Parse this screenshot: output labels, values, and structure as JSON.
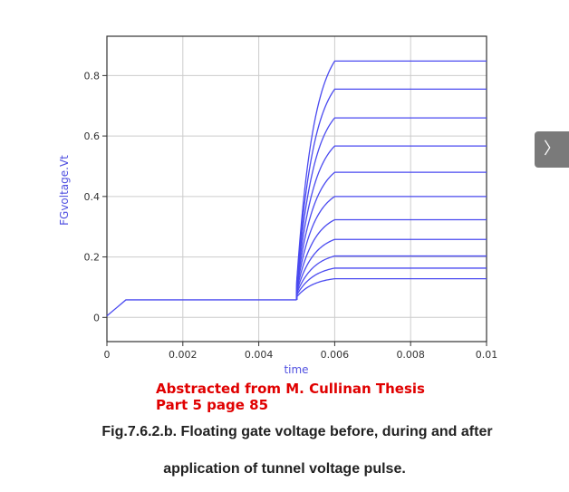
{
  "chart_data": {
    "type": "line",
    "ylabel": "FGvoltage.Vt",
    "xlabel": "time",
    "xlim": [
      0,
      0.01
    ],
    "ylim": [
      -0.08,
      0.93
    ],
    "xticks": [
      "0",
      "0.002",
      "0.004",
      "0.006",
      "0.008",
      "0.01"
    ],
    "xtick_values": [
      0,
      0.002,
      0.004,
      0.006,
      0.008,
      0.01
    ],
    "yticks": [
      "0",
      "0.2",
      "0.4",
      "0.6",
      "0.8"
    ],
    "ytick_values": [
      0,
      0.2,
      0.4,
      0.6,
      0.8
    ],
    "grid": true,
    "line_color": "#4a4af0",
    "ramp": {
      "x": [
        0,
        0.0005
      ],
      "y": [
        0.005,
        0.058
      ]
    },
    "plateau_y": 0.058,
    "pulse_start": 0.005,
    "pulse_end": 0.006,
    "pulse_start_y": [
      0.068,
      0.074,
      0.08,
      0.085,
      0.09,
      0.095,
      0.1,
      0.105,
      0.11,
      0.115,
      0.12
    ],
    "final_values": [
      0.128,
      0.163,
      0.203,
      0.258,
      0.323,
      0.4,
      0.48,
      0.567,
      0.66,
      0.755,
      0.848
    ]
  },
  "credit": {
    "line1": "Abstracted from M. Cullinan Thesis",
    "line2": "Part 5 page 85"
  },
  "caption": {
    "line1": "Fig.7.6.2.b. Floating gate voltage before, during and after",
    "line2": "application of tunnel voltage pulse."
  },
  "nav": {
    "next_glyph": "〉"
  }
}
